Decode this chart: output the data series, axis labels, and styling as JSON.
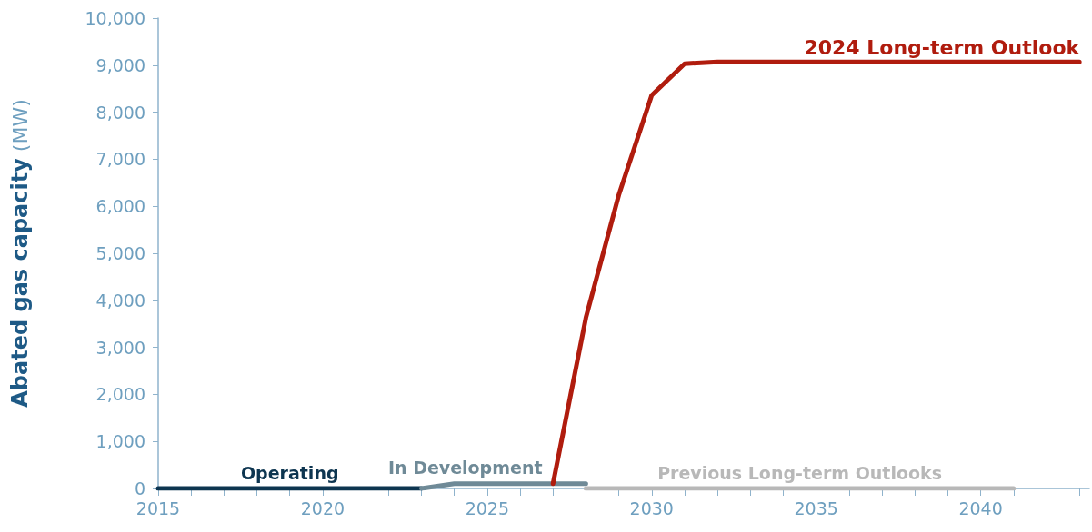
{
  "chart_data": {
    "type": "line",
    "ylabel": "Abated gas capacity (MW)",
    "xlim": [
      2015,
      2043.3
    ],
    "xticks": [
      2015,
      {
        "value": 2016,
        "label": null
      },
      {
        "value": 2017,
        "label": null
      },
      {
        "value": 2018,
        "label": null
      },
      {
        "value": 2019,
        "label": null
      },
      2020,
      {
        "value": 2021,
        "label": null
      },
      {
        "value": 2022,
        "label": null
      },
      {
        "value": 2023,
        "label": null
      },
      {
        "value": 2024,
        "label": null
      },
      2025,
      {
        "value": 2026,
        "label": null
      },
      {
        "value": 2027,
        "label": null
      },
      {
        "value": 2028,
        "label": null
      },
      {
        "value": 2029,
        "label": null
      },
      2030,
      {
        "value": 2031,
        "label": null
      },
      {
        "value": 2032,
        "label": null
      },
      {
        "value": 2033,
        "label": null
      },
      {
        "value": 2034,
        "label": null
      },
      2035,
      {
        "value": 2036,
        "label": null
      },
      {
        "value": 2037,
        "label": null
      },
      {
        "value": 2038,
        "label": null
      },
      {
        "value": 2039,
        "label": null
      },
      2040,
      {
        "value": 2041,
        "label": null
      },
      {
        "value": 2042,
        "label": null
      },
      {
        "value": 2043,
        "label": null
      }
    ],
    "ylim": [
      0,
      10000
    ],
    "yticks": [
      0,
      {
        "value": 1000,
        "label": "1,000"
      },
      {
        "value": 2000,
        "label": "2,000"
      },
      {
        "value": 3000,
        "label": "3,000"
      },
      {
        "value": 4000,
        "label": "4,000"
      },
      {
        "value": 5000,
        "label": "5,000"
      },
      {
        "value": 6000,
        "label": "6,000"
      },
      {
        "value": 7000,
        "label": "7,000"
      },
      {
        "value": 8000,
        "label": "8,000"
      },
      {
        "value": 9000,
        "label": "9,000"
      },
      {
        "value": 10000,
        "label": "10,000"
      }
    ],
    "grid": false,
    "legend": false,
    "marker": "none",
    "line_style": "solid",
    "series": [
      {
        "name": "Previous Long-term Outlooks",
        "color": "#b8b8b8",
        "x": [
          2028,
          2041
        ],
        "values": [
          0,
          0
        ]
      },
      {
        "name": "Operating",
        "color": "#0d3550",
        "x": [
          2015,
          2023
        ],
        "values": [
          0,
          0
        ]
      },
      {
        "name": "In Development",
        "color": "#6f8a97",
        "x": [
          2023,
          2024,
          2028
        ],
        "values": [
          0,
          100,
          100
        ]
      },
      {
        "name": "2024 Long-term Outlook",
        "color": "#b01c0e",
        "x": [
          2027,
          2028,
          2029,
          2030,
          2031,
          2032,
          2043
        ],
        "values": [
          100,
          3630,
          6240,
          8360,
          9030,
          9070,
          9070
        ]
      }
    ]
  }
}
